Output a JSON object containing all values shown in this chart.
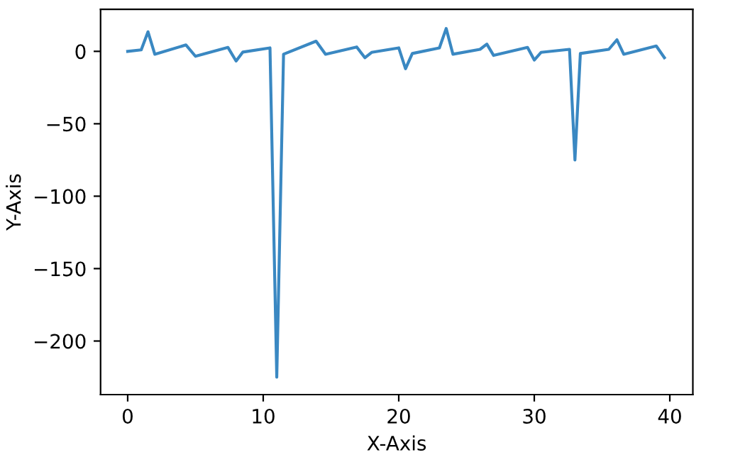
{
  "chart_data": {
    "type": "line",
    "xlabel": "X-Axis",
    "ylabel": "Y-Axis",
    "xlim": [
      -2,
      41.7
    ],
    "ylim": [
      -237,
      29
    ],
    "xticks": [
      0,
      10,
      20,
      30,
      40
    ],
    "yticks": [
      -200,
      -150,
      -100,
      -50,
      0
    ],
    "grid": false,
    "legend": false,
    "marker": "none",
    "line_style": "solid",
    "series": [
      {
        "color": "#3a88c2",
        "x": [
          0,
          1.0,
          1.5,
          2.0,
          4.3,
          5.0,
          7.4,
          8.0,
          8.5,
          10.5,
          11.0,
          11.5,
          13.9,
          14.6,
          16.9,
          17.5,
          18.0,
          20.0,
          20.5,
          21.0,
          23.0,
          23.5,
          24.0,
          26.0,
          26.5,
          27.0,
          29.5,
          30.0,
          30.5,
          32.6,
          33.0,
          33.4,
          35.5,
          36.1,
          36.6,
          39.0,
          39.6
        ],
        "values": [
          0,
          1,
          13.5,
          -2,
          4.4,
          -3.4,
          2.7,
          -6.7,
          -0.5,
          2.4,
          -225,
          -2,
          7,
          -2,
          3,
          -4.4,
          -0.7,
          2.4,
          -12,
          -1.5,
          2.4,
          15.8,
          -2,
          1.4,
          5,
          -2.8,
          2.7,
          -6,
          -0.7,
          1.4,
          -75,
          -1.5,
          1.4,
          8,
          -2,
          3.7,
          -4.4
        ]
      }
    ]
  }
}
